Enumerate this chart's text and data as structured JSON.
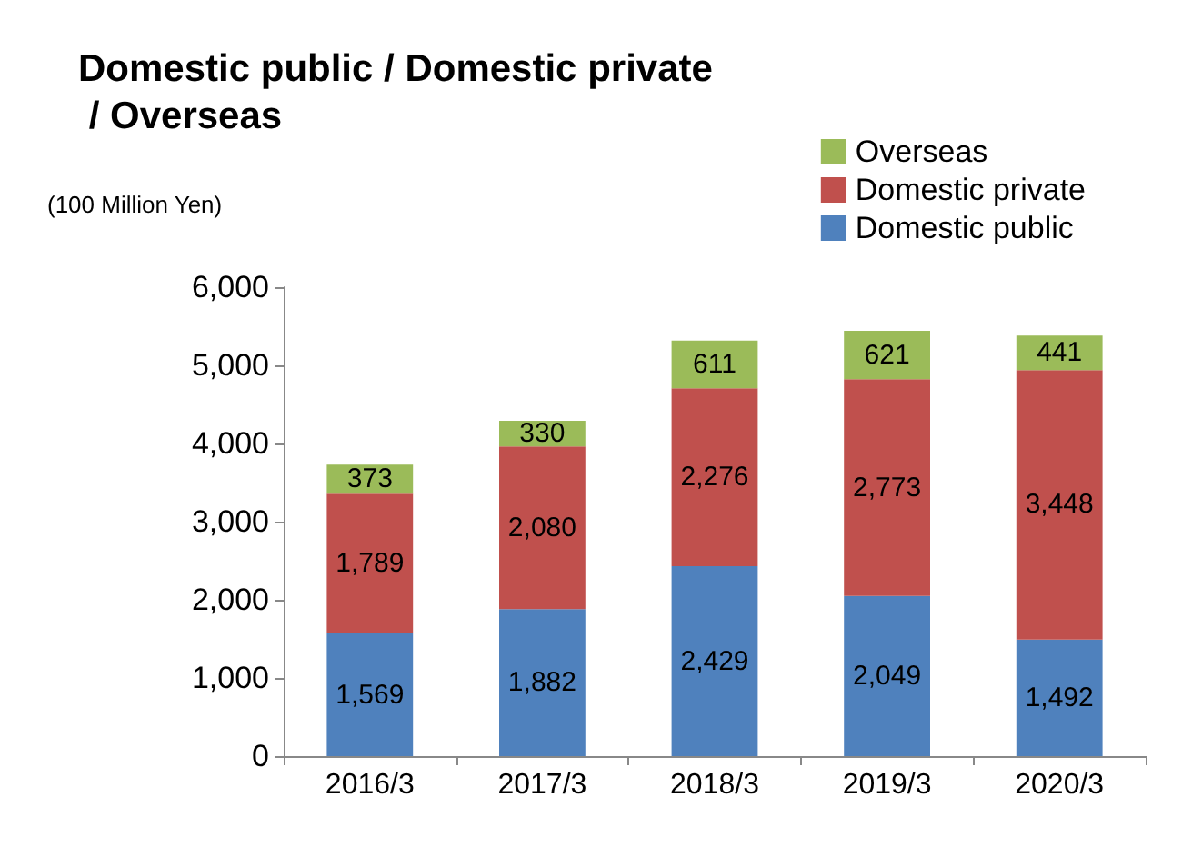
{
  "chart_data": {
    "type": "bar",
    "title": "Domestic public / Domestic private / Overseas",
    "ylabel": "(100 Million Yen)",
    "stacked": true,
    "legend": "top right",
    "grid": false,
    "categories": [
      "2016/3",
      "2017/3",
      "2018/3",
      "2019/3",
      "2020/3"
    ],
    "series": [
      {
        "name": "Domestic public",
        "color": "#4f81bd",
        "values": [
          1569,
          1882,
          2429,
          2049,
          1492
        ],
        "value_labels": [
          "1,569",
          "1,882",
          "2,429",
          "2,049",
          "1,492"
        ]
      },
      {
        "name": "Domestic private",
        "color": "#c0504d",
        "values": [
          1789,
          2080,
          2276,
          2773,
          3448
        ],
        "value_labels": [
          "1,789",
          "2,080",
          "2,276",
          "2,773",
          "3,448"
        ]
      },
      {
        "name": "Overseas",
        "color": "#9bbb59",
        "values": [
          373,
          330,
          611,
          621,
          441
        ],
        "value_labels": [
          "373",
          "330",
          "611",
          "621",
          "441"
        ]
      }
    ],
    "ylim": [
      0,
      6000
    ],
    "yticks": [
      {
        "value": 0,
        "label": "0"
      },
      {
        "value": 1000,
        "label": "1,000"
      },
      {
        "value": 2000,
        "label": "2,000"
      },
      {
        "value": 3000,
        "label": "3,000"
      },
      {
        "value": 4000,
        "label": "4,000"
      },
      {
        "value": 5000,
        "label": "5,000"
      },
      {
        "value": 6000,
        "label": "6,000"
      }
    ]
  }
}
